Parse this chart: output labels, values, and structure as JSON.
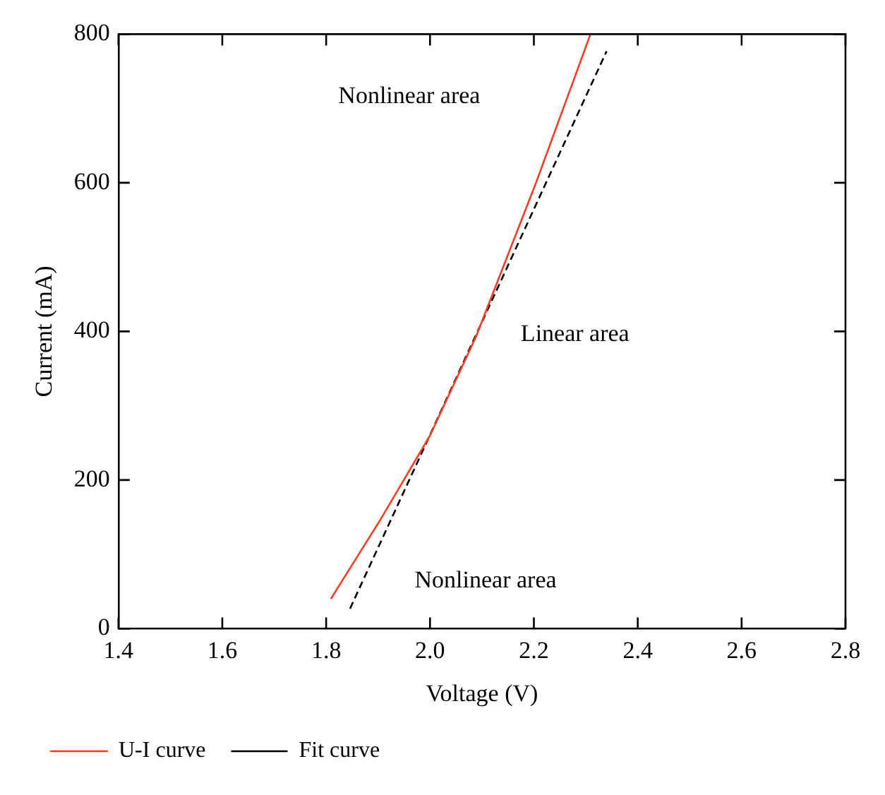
{
  "chart_data": {
    "type": "line",
    "xlabel": "Voltage (V)",
    "ylabel": "Current (mA)",
    "xlim": [
      1.4,
      2.8
    ],
    "xticks": [
      1.4,
      1.6,
      1.8,
      {
        "value": 2,
        "label": "2.0"
      },
      2.2,
      2.4,
      2.6,
      2.8
    ],
    "ylim": [
      0,
      800
    ],
    "yticks": [
      0,
      200,
      400,
      600,
      800
    ],
    "grid": false,
    "legend": "bottom",
    "marker": "none",
    "series": [
      {
        "name": "U-I curve",
        "color": "#ff3b1f",
        "line_style": "solid",
        "x": [
          1.809,
          1.903,
          2.0,
          2.088,
          2.203,
          2.309
        ],
        "values": [
          40,
          145,
          260,
          392,
          598,
          800
        ]
      },
      {
        "name": "Fit curve",
        "color": "#000000",
        "line_style": "dashed",
        "x": [
          1.846,
          2.34
        ],
        "values": [
          27,
          777
        ]
      }
    ],
    "annotations": [
      "Nonlinear area",
      "Linear area",
      "Nonlinear area"
    ]
  }
}
